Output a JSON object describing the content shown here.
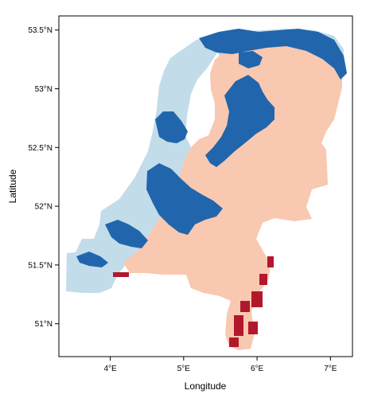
{
  "map": {
    "colors": {
      "water_dark": "#2166ac",
      "water_light": "#c2dcea",
      "land_peach": "#f9c8b0",
      "land_red": "#b2182b",
      "frame": "#000000",
      "background": "#ffffff"
    },
    "x_axis": {
      "label": "Longitude",
      "ticks": [
        {
          "value": 4,
          "label": "4°E"
        },
        {
          "value": 5,
          "label": "5°E"
        },
        {
          "value": 6,
          "label": "6°E"
        },
        {
          "value": 7,
          "label": "7°E"
        }
      ],
      "range": [
        3.3,
        7.3
      ]
    },
    "y_axis": {
      "label": "Latitude",
      "ticks": [
        {
          "value": 51.0,
          "label": "51°N"
        },
        {
          "value": 51.5,
          "label": "51.5°N"
        },
        {
          "value": 52.0,
          "label": "52°N"
        },
        {
          "value": 52.5,
          "label": "52.5°N"
        },
        {
          "value": 53.0,
          "label": "53°N"
        },
        {
          "value": 53.5,
          "label": "53.5°N"
        }
      ],
      "range": [
        50.72,
        53.62
      ]
    }
  }
}
